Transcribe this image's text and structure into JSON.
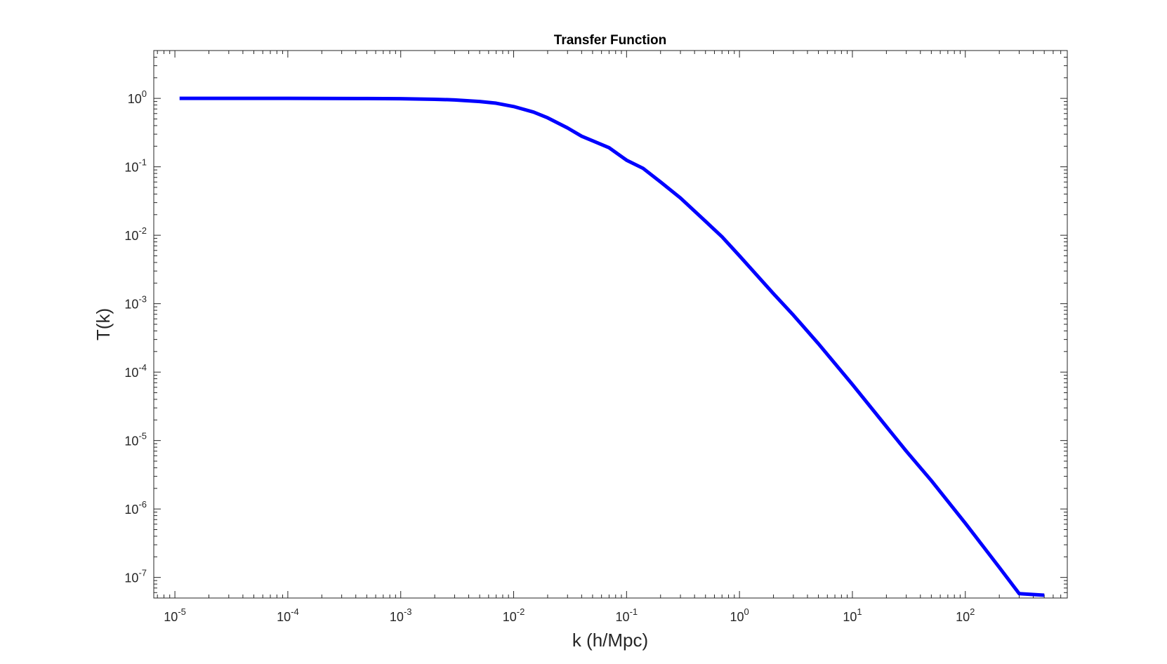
{
  "chart_data": {
    "type": "line",
    "title": "Transfer Function",
    "xlabel": "k (h/Mpc)",
    "ylabel": "T(k)",
    "xscale": "log",
    "yscale": "log",
    "xlim": [
      6.5e-06,
      800
    ],
    "ylim": [
      5e-08,
      5
    ],
    "grid": false,
    "box": true,
    "legend": "none",
    "x_ticks": [
      {
        "value": 1e-05,
        "base": "10",
        "exp": "-5"
      },
      {
        "value": 0.0001,
        "base": "10",
        "exp": "-4"
      },
      {
        "value": 0.001,
        "base": "10",
        "exp": "-3"
      },
      {
        "value": 0.01,
        "base": "10",
        "exp": "-2"
      },
      {
        "value": 0.1,
        "base": "10",
        "exp": "-1"
      },
      {
        "value": 1,
        "base": "10",
        "exp": "0"
      },
      {
        "value": 10,
        "base": "10",
        "exp": "1"
      },
      {
        "value": 100,
        "base": "10",
        "exp": "2"
      }
    ],
    "y_ticks": [
      {
        "value": 1,
        "base": "10",
        "exp": "0"
      },
      {
        "value": 0.1,
        "base": "10",
        "exp": "-1"
      },
      {
        "value": 0.01,
        "base": "10",
        "exp": "-2"
      },
      {
        "value": 0.001,
        "base": "10",
        "exp": "-3"
      },
      {
        "value": 0.0001,
        "base": "10",
        "exp": "-4"
      },
      {
        "value": 1e-05,
        "base": "10",
        "exp": "-5"
      },
      {
        "value": 1e-06,
        "base": "10",
        "exp": "-6"
      },
      {
        "value": 1e-07,
        "base": "10",
        "exp": "-7"
      }
    ],
    "series": [
      {
        "color": "#0000ff",
        "x": [
          1.1e-05,
          0.0001,
          0.0005,
          0.001,
          0.002,
          0.003,
          0.005,
          0.007,
          0.01,
          0.015,
          0.02,
          0.03,
          0.04,
          0.05,
          0.07,
          0.1,
          0.14,
          0.2,
          0.3,
          0.5,
          0.7,
          1,
          2,
          3,
          5,
          10,
          20,
          30,
          50,
          100,
          200,
          300,
          500
        ],
        "y": [
          1.0,
          1.0,
          0.995,
          0.99,
          0.97,
          0.95,
          0.9,
          0.85,
          0.76,
          0.63,
          0.52,
          0.37,
          0.28,
          0.24,
          0.19,
          0.125,
          0.095,
          0.06,
          0.035,
          0.016,
          0.0095,
          0.005,
          0.0014,
          0.00068,
          0.00026,
          6.6e-05,
          1.6e-05,
          7e-06,
          2.6e-06,
          6.2e-07,
          1.4e-07,
          5.8e-08,
          5.5e-08
        ]
      }
    ]
  }
}
